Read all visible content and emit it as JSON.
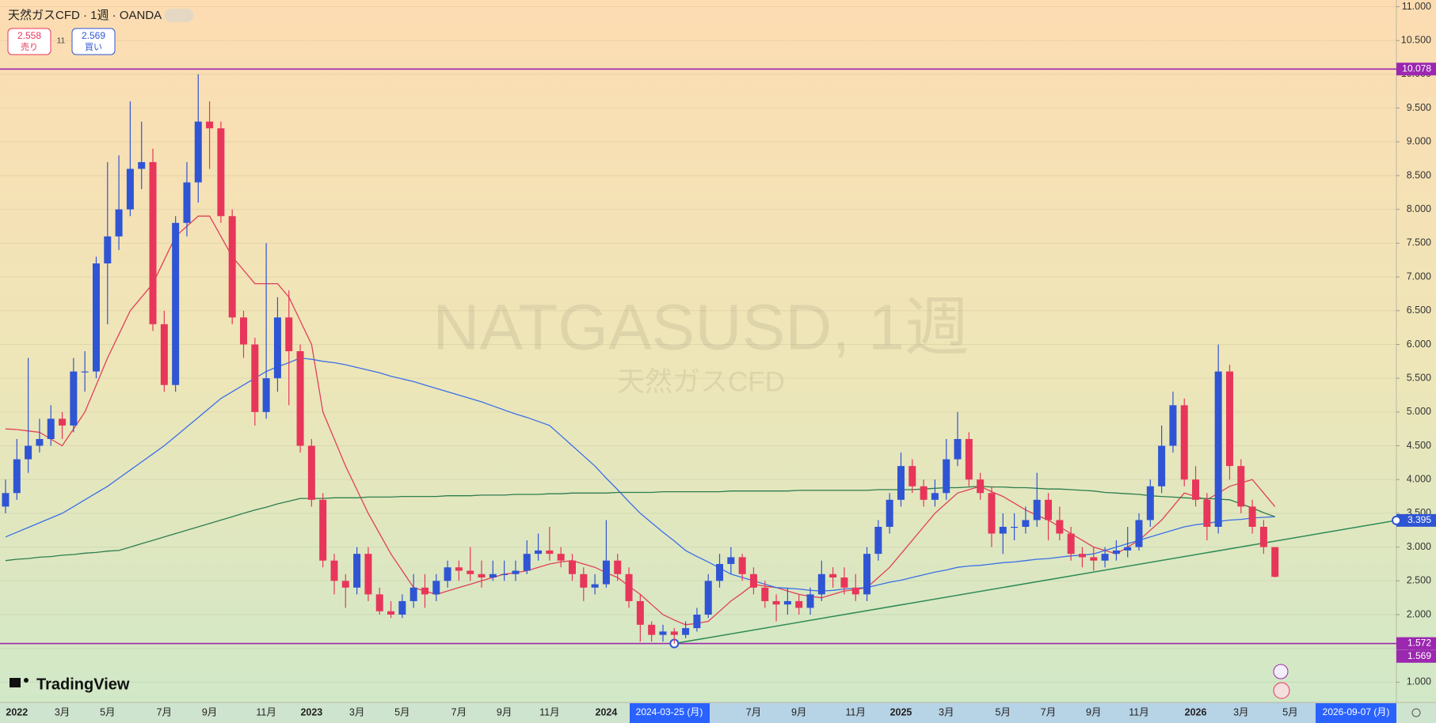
{
  "header": {
    "symbol": "天然ガスCFD · 1週 · OANDA",
    "sell_price": "2.558",
    "sell_label": "売り",
    "spread": "11",
    "buy_price": "2.569",
    "buy_label": "買い"
  },
  "watermark": {
    "title": "NATGASUSD, 1週",
    "subtitle": "天然ガスCFD"
  },
  "branding": "TradingView",
  "chart_data": {
    "type": "candlestick",
    "up_color": "#2f55d4",
    "down_color": "#e8365a",
    "ylim": [
      0.7,
      11.1
    ],
    "yticks": [
      {
        "value": 1,
        "label": "1.000"
      },
      {
        "value": 1.5,
        "label": "1.500"
      },
      {
        "value": 2,
        "label": "2.000"
      },
      {
        "value": 2.5,
        "label": "2.500"
      },
      {
        "value": 3,
        "label": "3.000"
      },
      {
        "value": 3.5,
        "label": "3.500"
      },
      {
        "value": 4,
        "label": "4.000"
      },
      {
        "value": 4.5,
        "label": "4.500"
      },
      {
        "value": 5,
        "label": "5.000"
      },
      {
        "value": 5.5,
        "label": "5.500"
      },
      {
        "value": 6,
        "label": "6.000"
      },
      {
        "value": 6.5,
        "label": "6.500"
      },
      {
        "value": 7,
        "label": "7.000"
      },
      {
        "value": 7.5,
        "label": "7.500"
      },
      {
        "value": 8,
        "label": "8.000"
      },
      {
        "value": 8.5,
        "label": "8.500"
      },
      {
        "value": 9,
        "label": "9.000"
      },
      {
        "value": 9.5,
        "label": "9.500"
      },
      {
        "value": 10,
        "label": "10.000"
      },
      {
        "value": 10.5,
        "label": "10.500"
      },
      {
        "value": 11,
        "label": "11.000"
      }
    ],
    "grid": true,
    "categories": [
      null,
      "2022",
      null,
      null,
      null,
      "3月",
      null,
      null,
      null,
      "5月",
      null,
      null,
      null,
      null,
      "7月",
      null,
      null,
      null,
      "9月",
      null,
      null,
      null,
      null,
      "11月",
      null,
      null,
      null,
      "2023",
      null,
      null,
      null,
      "3月",
      null,
      null,
      null,
      "5月",
      null,
      null,
      null,
      null,
      "7月",
      null,
      null,
      null,
      "9月",
      null,
      null,
      null,
      "11月",
      null,
      null,
      null,
      null,
      "2024",
      null,
      null,
      null,
      null,
      null,
      null,
      null,
      null,
      null,
      null,
      null,
      null,
      "7月",
      null,
      null,
      null,
      "9月",
      null,
      null,
      null,
      null,
      "11月",
      null,
      null,
      null,
      "2025",
      null,
      null,
      null,
      "3月",
      null,
      null,
      null,
      null,
      "5月",
      null,
      null,
      null,
      "7月",
      null,
      null,
      null,
      "9月",
      null,
      null,
      null,
      "11月",
      null,
      null,
      null,
      null,
      "2026",
      null,
      null,
      null,
      "3月",
      null,
      null,
      null
    ],
    "open": [
      3.6,
      3.8,
      4.3,
      4.5,
      4.6,
      4.9,
      4.8,
      5.6,
      5.6,
      7.2,
      7.6,
      8.0,
      8.6,
      8.7,
      6.3,
      5.4,
      7.8,
      8.4,
      9.3,
      9.2,
      7.9,
      6.4,
      6.0,
      5.0,
      5.5,
      6.4,
      5.9,
      4.5,
      3.7,
      2.8,
      2.5,
      2.4,
      2.9,
      2.3,
      2.05,
      2.0,
      2.2,
      2.4,
      2.3,
      2.5,
      2.7,
      2.65,
      2.6,
      2.55,
      2.6,
      2.6,
      2.65,
      2.9,
      2.95,
      2.9,
      2.8,
      2.6,
      2.4,
      2.45,
      2.8,
      2.6,
      2.2,
      1.85,
      1.7,
      1.75,
      1.7,
      1.8,
      2.0,
      2.5,
      2.75,
      2.85,
      2.6,
      2.4,
      2.2,
      2.15,
      2.2,
      2.1,
      2.3,
      2.6,
      2.55,
      2.4,
      2.3,
      2.9,
      3.3,
      3.7,
      4.2,
      3.9,
      3.7,
      3.8,
      4.3,
      4.6,
      4.0,
      3.8,
      3.2,
      3.3,
      3.3,
      3.4,
      3.7,
      3.4,
      3.2,
      2.9,
      2.85,
      2.8,
      2.9,
      2.95,
      3.0,
      3.4,
      3.9,
      4.5,
      5.1,
      4.0,
      3.7,
      3.3,
      5.6,
      4.2,
      3.6,
      3.3,
      3.0
    ],
    "high": [
      4.0,
      4.6,
      5.8,
      4.9,
      5.1,
      5.0,
      5.8,
      5.9,
      7.3,
      8.7,
      8.8,
      9.6,
      9.3,
      8.9,
      6.5,
      7.9,
      8.7,
      10.0,
      9.6,
      9.3,
      8.0,
      6.5,
      6.1,
      7.5,
      6.7,
      6.8,
      6.0,
      4.6,
      3.8,
      2.9,
      2.6,
      3.0,
      3.0,
      2.4,
      2.2,
      2.3,
      2.6,
      2.6,
      2.6,
      2.8,
      2.8,
      3.0,
      2.8,
      2.8,
      2.8,
      2.8,
      3.1,
      3.2,
      3.3,
      3.0,
      2.9,
      2.7,
      2.6,
      3.4,
      2.9,
      2.7,
      2.3,
      1.9,
      1.85,
      1.8,
      1.9,
      2.1,
      2.6,
      2.9,
      3.0,
      2.9,
      2.7,
      2.5,
      2.3,
      2.4,
      2.3,
      2.4,
      2.8,
      2.7,
      2.7,
      2.6,
      3.0,
      3.4,
      3.8,
      4.4,
      4.3,
      4.0,
      4.0,
      4.6,
      5.0,
      4.7,
      4.1,
      3.9,
      3.5,
      3.5,
      3.6,
      4.1,
      3.8,
      3.6,
      3.3,
      3.0,
      3.0,
      3.0,
      3.1,
      3.3,
      3.5,
      4.0,
      4.8,
      5.3,
      5.2,
      4.2,
      3.8,
      6.0,
      5.7,
      4.3,
      3.7,
      3.4,
      3.0
    ],
    "low": [
      3.5,
      3.7,
      4.1,
      4.4,
      4.5,
      4.6,
      4.7,
      5.3,
      5.5,
      6.3,
      7.4,
      7.9,
      8.3,
      6.2,
      5.3,
      5.3,
      7.6,
      8.1,
      8.6,
      7.8,
      6.3,
      5.8,
      4.8,
      4.9,
      5.3,
      5.1,
      4.4,
      3.6,
      2.7,
      2.3,
      2.1,
      2.3,
      2.2,
      2.0,
      1.95,
      1.95,
      2.1,
      2.1,
      2.2,
      2.4,
      2.5,
      2.5,
      2.4,
      2.5,
      2.5,
      2.5,
      2.6,
      2.8,
      2.8,
      2.7,
      2.5,
      2.2,
      2.3,
      2.4,
      2.5,
      2.1,
      1.6,
      1.6,
      1.6,
      1.57,
      1.65,
      1.75,
      1.95,
      2.4,
      2.6,
      2.5,
      2.3,
      2.1,
      1.9,
      2.0,
      2.0,
      2.0,
      2.2,
      2.4,
      2.3,
      2.2,
      2.2,
      2.8,
      3.2,
      3.6,
      3.8,
      3.6,
      3.6,
      3.7,
      4.2,
      3.9,
      3.7,
      3.0,
      2.9,
      3.1,
      3.2,
      3.3,
      3.1,
      3.1,
      2.8,
      2.7,
      2.65,
      2.7,
      2.8,
      2.85,
      2.95,
      3.3,
      3.8,
      4.4,
      3.9,
      3.6,
      3.1,
      3.2,
      4.0,
      3.5,
      3.2,
      2.9,
      2.55
    ],
    "close": [
      3.8,
      4.3,
      4.5,
      4.6,
      4.9,
      4.8,
      5.6,
      5.6,
      7.2,
      7.6,
      8.0,
      8.6,
      8.7,
      6.3,
      5.4,
      7.8,
      8.4,
      9.3,
      9.2,
      7.9,
      6.4,
      6.0,
      5.0,
      5.5,
      6.4,
      5.9,
      4.5,
      3.7,
      2.8,
      2.5,
      2.4,
      2.9,
      2.3,
      2.05,
      2.0,
      2.2,
      2.4,
      2.3,
      2.5,
      2.7,
      2.65,
      2.6,
      2.55,
      2.6,
      2.6,
      2.65,
      2.9,
      2.95,
      2.9,
      2.8,
      2.6,
      2.4,
      2.45,
      2.8,
      2.6,
      2.2,
      1.85,
      1.7,
      1.75,
      1.7,
      1.8,
      2.0,
      2.5,
      2.75,
      2.85,
      2.6,
      2.4,
      2.2,
      2.15,
      2.2,
      2.1,
      2.3,
      2.6,
      2.55,
      2.4,
      2.3,
      2.9,
      3.3,
      3.7,
      4.2,
      3.9,
      3.7,
      3.8,
      4.3,
      4.6,
      4.0,
      3.8,
      3.2,
      3.3,
      3.3,
      3.4,
      3.7,
      3.4,
      3.2,
      2.9,
      2.85,
      2.8,
      2.9,
      2.95,
      3.0,
      3.4,
      3.9,
      4.5,
      5.1,
      4.0,
      3.7,
      3.3,
      5.6,
      4.2,
      3.6,
      3.3,
      3.0,
      2.56
    ],
    "moving_averages": [
      {
        "color": "#e0405a",
        "values": [
          4.75,
          4.74,
          4.72,
          4.7,
          4.6,
          4.5,
          4.75,
          5.0,
          5.4,
          5.8,
          6.15,
          6.5,
          6.7,
          6.9,
          7.25,
          7.6,
          7.75,
          7.9,
          7.9,
          7.6,
          7.3,
          7.1,
          6.9,
          6.9,
          6.9,
          6.7,
          6.35,
          6.0,
          5.0,
          4.6,
          4.2,
          3.85,
          3.5,
          3.2,
          2.9,
          2.65,
          2.4,
          2.35,
          2.3,
          2.35,
          2.4,
          2.45,
          2.5,
          2.55,
          2.6,
          2.62,
          2.65,
          2.7,
          2.75,
          2.78,
          2.8,
          2.75,
          2.7,
          2.62,
          2.55,
          2.42,
          2.3,
          2.15,
          2.0,
          1.92,
          1.85,
          1.87,
          1.9,
          2.05,
          2.2,
          2.32,
          2.45,
          2.42,
          2.4,
          2.35,
          2.3,
          2.27,
          2.25,
          2.3,
          2.35,
          2.37,
          2.4,
          2.55,
          2.7,
          2.9,
          3.1,
          3.3,
          3.5,
          3.65,
          3.8,
          3.85,
          3.9,
          3.82,
          3.75,
          3.65,
          3.55,
          3.47,
          3.4,
          3.3,
          3.2,
          3.1,
          3.0,
          2.95,
          2.9,
          3.0,
          3.1,
          3.25,
          3.4,
          3.6,
          3.8,
          3.75,
          3.7,
          3.8,
          3.9,
          3.95,
          4.0,
          3.8,
          3.6
        ]
      },
      {
        "color": "#3a6fe8",
        "values": [
          3.15,
          3.22,
          3.29,
          3.36,
          3.43,
          3.5,
          3.6,
          3.7,
          3.8,
          3.9,
          4.02,
          4.14,
          4.26,
          4.38,
          4.5,
          4.64,
          4.78,
          4.92,
          5.06,
          5.2,
          5.3,
          5.4,
          5.5,
          5.6,
          5.67,
          5.73,
          5.8,
          5.78,
          5.75,
          5.73,
          5.7,
          5.66,
          5.62,
          5.58,
          5.53,
          5.49,
          5.45,
          5.4,
          5.35,
          5.3,
          5.25,
          5.2,
          5.15,
          5.09,
          5.03,
          4.97,
          4.92,
          4.86,
          4.8,
          4.65,
          4.5,
          4.35,
          4.2,
          4.02,
          3.85,
          3.67,
          3.5,
          3.36,
          3.22,
          3.09,
          2.95,
          2.86,
          2.78,
          2.69,
          2.6,
          2.55,
          2.5,
          2.45,
          2.4,
          2.39,
          2.38,
          2.36,
          2.35,
          2.36,
          2.38,
          2.39,
          2.4,
          2.44,
          2.48,
          2.51,
          2.55,
          2.59,
          2.63,
          2.66,
          2.7,
          2.72,
          2.73,
          2.75,
          2.77,
          2.78,
          2.8,
          2.82,
          2.83,
          2.85,
          2.87,
          2.88,
          2.9,
          2.95,
          3.0,
          3.05,
          3.1,
          3.15,
          3.2,
          3.25,
          3.3,
          3.33,
          3.35,
          3.38,
          3.4,
          3.41,
          3.43,
          3.44,
          3.45
        ]
      },
      {
        "color": "#2e7d4f",
        "values": [
          2.8,
          2.82,
          2.83,
          2.85,
          2.86,
          2.88,
          2.89,
          2.91,
          2.92,
          2.94,
          2.95,
          3.0,
          3.05,
          3.1,
          3.15,
          3.2,
          3.25,
          3.3,
          3.35,
          3.4,
          3.45,
          3.5,
          3.55,
          3.59,
          3.64,
          3.68,
          3.72,
          3.72,
          3.72,
          3.73,
          3.73,
          3.73,
          3.74,
          3.74,
          3.74,
          3.75,
          3.75,
          3.75,
          3.75,
          3.76,
          3.76,
          3.76,
          3.77,
          3.77,
          3.77,
          3.78,
          3.78,
          3.78,
          3.79,
          3.79,
          3.8,
          3.8,
          3.8,
          3.8,
          3.81,
          3.81,
          3.81,
          3.81,
          3.82,
          3.82,
          3.82,
          3.82,
          3.82,
          3.82,
          3.83,
          3.83,
          3.83,
          3.83,
          3.83,
          3.83,
          3.84,
          3.84,
          3.84,
          3.84,
          3.84,
          3.84,
          3.84,
          3.85,
          3.85,
          3.85,
          3.85,
          3.86,
          3.87,
          3.88,
          3.88,
          3.89,
          3.9,
          3.89,
          3.89,
          3.88,
          3.88,
          3.87,
          3.86,
          3.86,
          3.85,
          3.84,
          3.83,
          3.81,
          3.8,
          3.79,
          3.78,
          3.76,
          3.75,
          3.74,
          3.73,
          3.72,
          3.72,
          3.71,
          3.7,
          3.64,
          3.58,
          3.51,
          3.45
        ]
      }
    ],
    "hlines": [
      10.078,
      1.572
    ],
    "hline_color": "#9c27b0",
    "low_label": 1.569,
    "trendline": [
      1.572,
      3.395
    ],
    "trendline_color": "#2e8b57",
    "cursor_date": "2024-03-25 (月)",
    "future_month": "5月",
    "range_end_date": "2026-09-07 (月)"
  }
}
